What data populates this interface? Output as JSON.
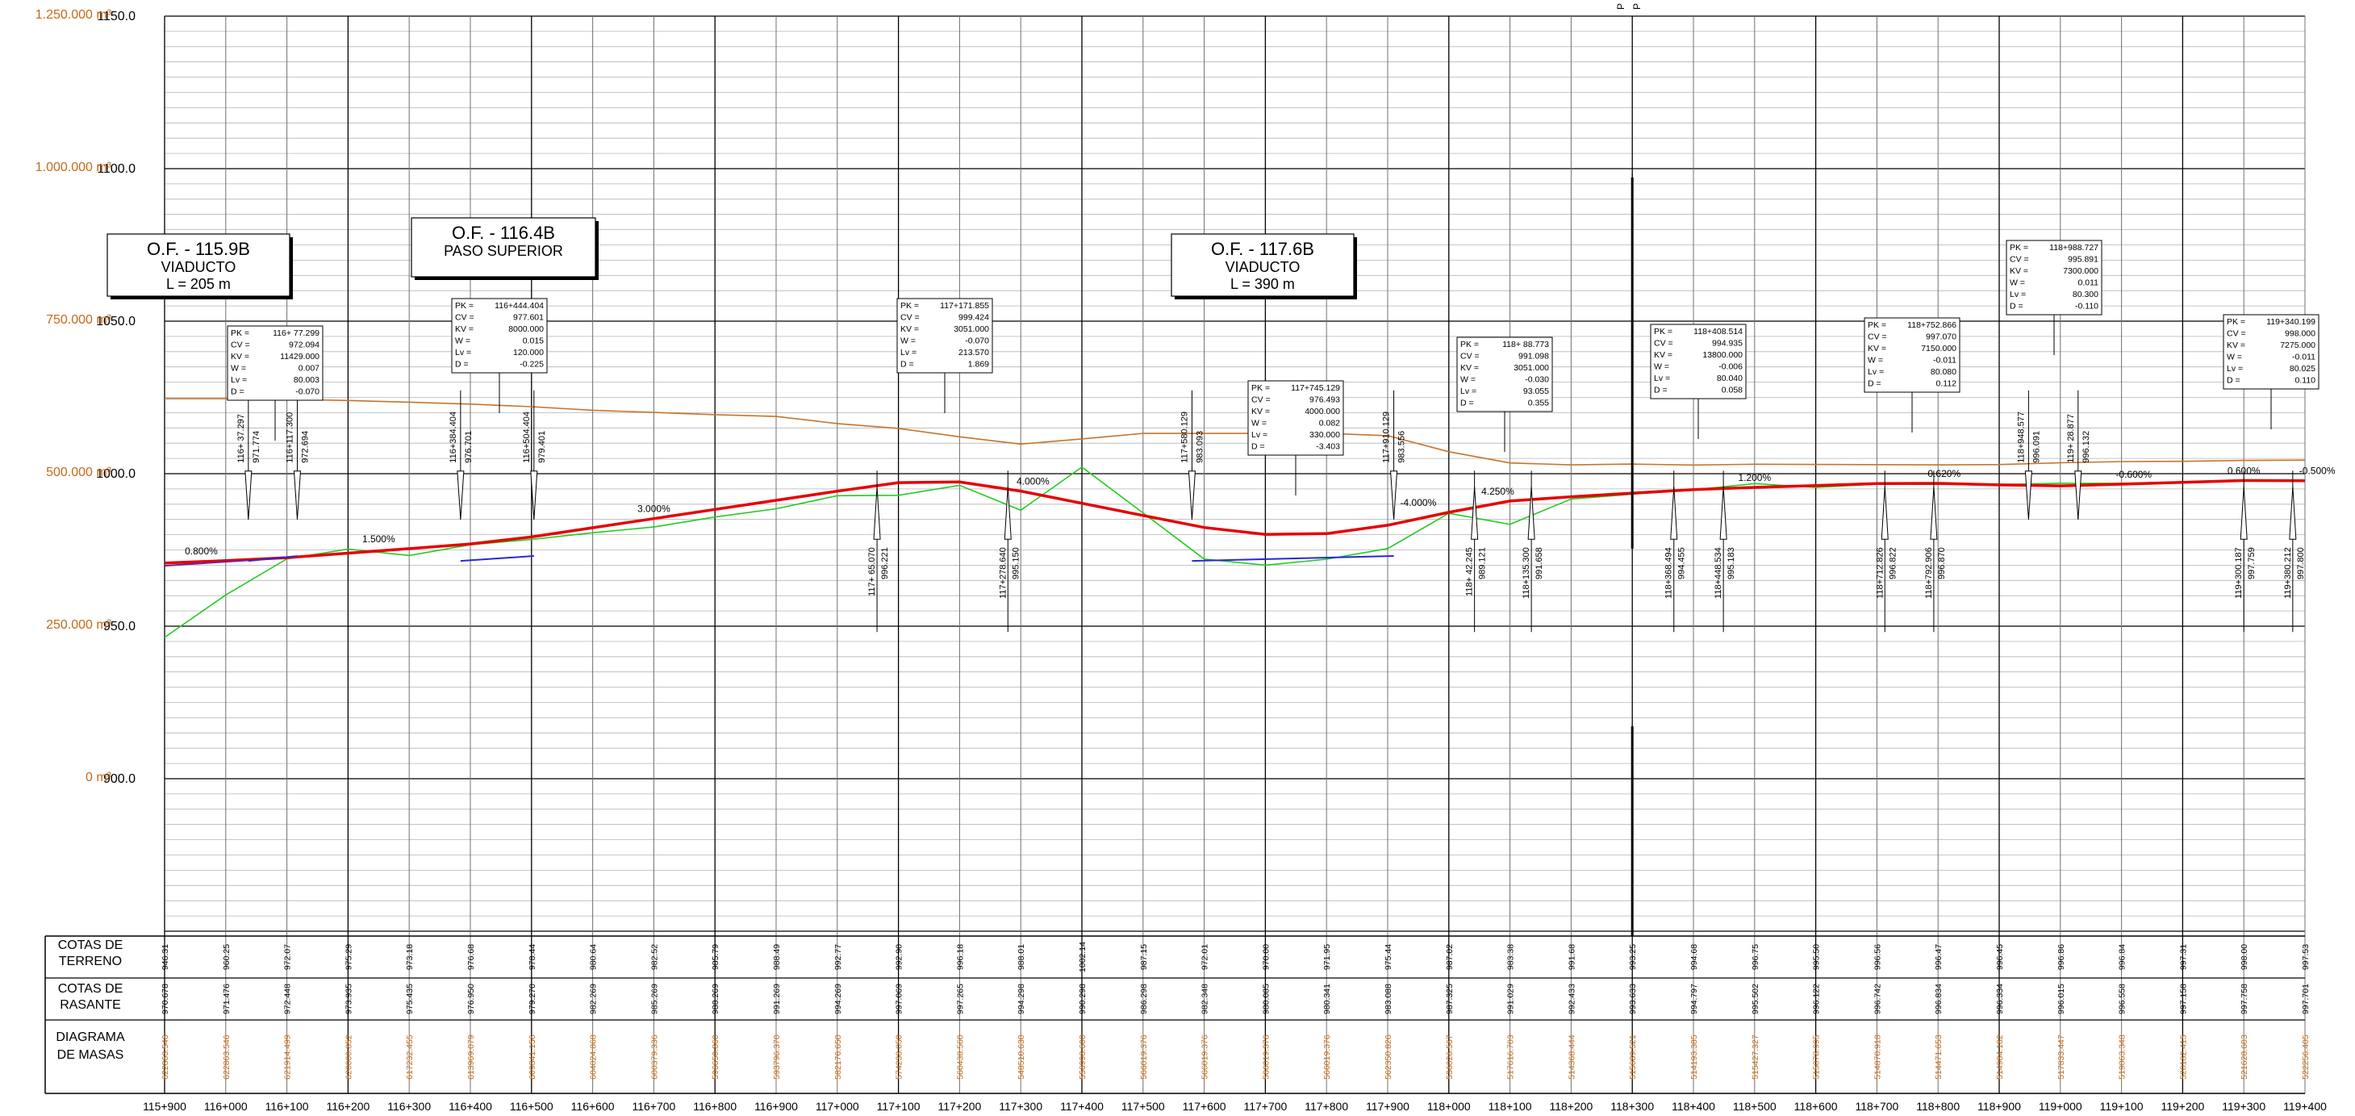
{
  "colors": {
    "grid_major": "#000000",
    "grid_minor": "#b4b4b4",
    "rasante": "#e60000",
    "terreno": "#22cc22",
    "masas": "#c8732a",
    "acuerdo": "#2828d8",
    "acuerdo2": "#7a1f9c",
    "masa_labels": "#c46a16"
  },
  "axis": {
    "elev_labels": [
      "1150.0",
      "1100.0",
      "1050.0",
      "1000.0",
      "950.0",
      "900.0"
    ],
    "vol_labels": [
      "1.250.000 m³",
      "1.000.000 m³",
      "750.000 m³",
      "500.000 m³",
      "250.000 m³",
      "0 m³"
    ],
    "pk_labels": [
      "115+900",
      "116+000",
      "116+100",
      "116+200",
      "116+300",
      "116+400",
      "116+500",
      "116+600",
      "116+700",
      "116+800",
      "116+900",
      "117+000",
      "117+100",
      "117+200",
      "117+300",
      "117+400",
      "117+500",
      "117+600",
      "117+700",
      "117+800",
      "117+900",
      "118+000",
      "118+100",
      "118+200",
      "118+300",
      "118+400",
      "118+500",
      "118+600",
      "118+700",
      "118+800",
      "118+900",
      "119+000",
      "119+100",
      "119+200",
      "119+300",
      "119+400"
    ]
  },
  "structures": [
    {
      "title": "O.F. - 115.9B",
      "type": "VIADUCTO",
      "length": "L = 205 m"
    },
    {
      "title": "O.F. - 116.4B",
      "type": "PASO SUPERIOR",
      "length": ""
    },
    {
      "title": "O.F. - 117.6B",
      "type": "VIADUCTO",
      "length": "L = 390 m"
    }
  ],
  "vertical_curves": [
    {
      "PK": "116+ 77.299",
      "CV": "972.094",
      "KV": "11429.000",
      "W": "0.007",
      "Lv": "80.003",
      "D": "-0.070"
    },
    {
      "PK": "116+444.404",
      "CV": "977.601",
      "KV": "8000.000",
      "W": "0.015",
      "Lv": "120.000",
      "D": "-0.225"
    },
    {
      "PK": "117+171.855",
      "CV": "999.424",
      "KV": "3051.000",
      "W": "-0.070",
      "Lv": "213.570",
      "D": "1.869"
    },
    {
      "PK": "117+745.129",
      "CV": "976.493",
      "KV": "4000.000",
      "W": "0.082",
      "Lv": "330.000",
      "D": "-3.403"
    },
    {
      "PK": "118+ 88.773",
      "CV": "991.098",
      "KV": "3051.000",
      "W": "-0.030",
      "Lv": "93.055",
      "D": "0.355"
    },
    {
      "PK": "118+408.514",
      "CV": "994.935",
      "KV": "13800.000",
      "W": "-0.006",
      "Lv": "80.040",
      "D": "0.058"
    },
    {
      "PK": "118+752.866",
      "CV": "997.070",
      "KV": "7150.000",
      "W": "-0.011",
      "Lv": "80.080",
      "D": "0.112"
    },
    {
      "PK": "118+988.727",
      "CV": "995.891",
      "KV": "7300.000",
      "W": "0.011",
      "Lv": "80.300",
      "D": "-0.110"
    },
    {
      "PK": "119+340.199",
      "CV": "998.000",
      "KV": "7275.000",
      "W": "-0.011",
      "Lv": "80.025",
      "D": "0.110"
    }
  ],
  "tangent_labels": [
    {
      "label": "PK  -",
      "value": ""
    }
  ],
  "markers_up": [
    {
      "pk": "116+ 37.297",
      "elev": "971.774"
    },
    {
      "pk": "116+117.300",
      "elev": "972.694"
    },
    {
      "pk": "116+384.404",
      "elev": "976.701"
    },
    {
      "pk": "116+504.404",
      "elev": "979.401"
    },
    {
      "pk": "117+580.129",
      "elev": "983.093"
    },
    {
      "pk": "117+910.129",
      "elev": "983.556"
    },
    {
      "pk": "118+948.577",
      "elev": "996.091"
    },
    {
      "pk": "119+ 28.877",
      "elev": "996.132"
    }
  ],
  "markers_down": [
    {
      "pk": "117+ 65.070",
      "elev": "996.221"
    },
    {
      "pk": "117+278.640",
      "elev": "995.150"
    },
    {
      "pk": "118+ 42.245",
      "elev": "989.121"
    },
    {
      "pk": "118+135.300",
      "elev": "991.658"
    },
    {
      "pk": "118+368.494",
      "elev": "994.455"
    },
    {
      "pk": "118+448.534",
      "elev": "995.183"
    },
    {
      "pk": "118+712.826",
      "elev": "996.822"
    },
    {
      "pk": "118+792.906",
      "elev": "996.870"
    },
    {
      "pk": "119+300.187",
      "elev": "997.759"
    },
    {
      "pk": "119+380.212",
      "elev": "997.800"
    }
  ],
  "grades": [
    "0.800%",
    "1.500%",
    "3.000%",
    "4.000%",
    "-4.000%",
    "4.250%",
    "1.200%",
    "0.620%",
    "-0.600%",
    "0.600%",
    "-0.500%"
  ],
  "table": {
    "row_labels": [
      [
        "COTAS DE",
        "TERRENO"
      ],
      [
        "COTAS DE",
        "RASANTE"
      ],
      [
        "DIAGRAMA",
        "DE MASAS"
      ]
    ],
    "terreno": [
      "946.31",
      "960.25",
      "972.07",
      "975.29",
      "973.18",
      "976.68",
      "978.44",
      "980.64",
      "982.52",
      "985.79",
      "988.49",
      "992.77",
      "992.90",
      "996.18",
      "988.01",
      "1002.14",
      "987.15",
      "972.01",
      "970.00",
      "971.95",
      "975.44",
      "987.02",
      "983.38",
      "991.68",
      "993.25",
      "994.68",
      "996.75",
      "995.50",
      "996.56",
      "996.47",
      "996.45",
      "996.86",
      "996.84",
      "997.31",
      "998.00",
      "997.53"
    ],
    "rasante": [
      "970.678",
      "971.476",
      "972.448",
      "973.935",
      "975.435",
      "976.950",
      "979.270",
      "982.269",
      "985.269",
      "988.269",
      "991.269",
      "994.269",
      "997.069",
      "997.265",
      "994.298",
      "990.298",
      "986.298",
      "982.348",
      "980.085",
      "980.341",
      "983.088",
      "987.325",
      "991.029",
      "992.433",
      "993.633",
      "994.797",
      "995.502",
      "996.122",
      "996.742",
      "996.834",
      "996.334",
      "996.015",
      "996.558",
      "997.158",
      "997.758",
      "997.701"
    ],
    "masas": [
      "622863.546",
      "622863.546",
      "621914.499",
      "620000.852",
      "617232.455",
      "613969.079",
      "609841.156",
      "604024.868",
      "600379.336",
      "596650.860",
      "593796.370",
      "582176.650",
      "574238.050",
      "560438.560",
      "548510.630",
      "556998.600",
      "566019.376",
      "566019.376",
      "566019.376",
      "566019.376",
      "562350.826",
      "536026.567",
      "517616.703",
      "514368.444",
      "515689.521",
      "514193.385",
      "515427.327",
      "515078.995",
      "514870.918",
      "514471.653",
      "514984.182",
      "517833.447",
      "519863.348",
      "520182.415",
      "521628.603",
      "522256.405"
    ]
  },
  "top_labels": [
    "P",
    "P"
  ]
}
